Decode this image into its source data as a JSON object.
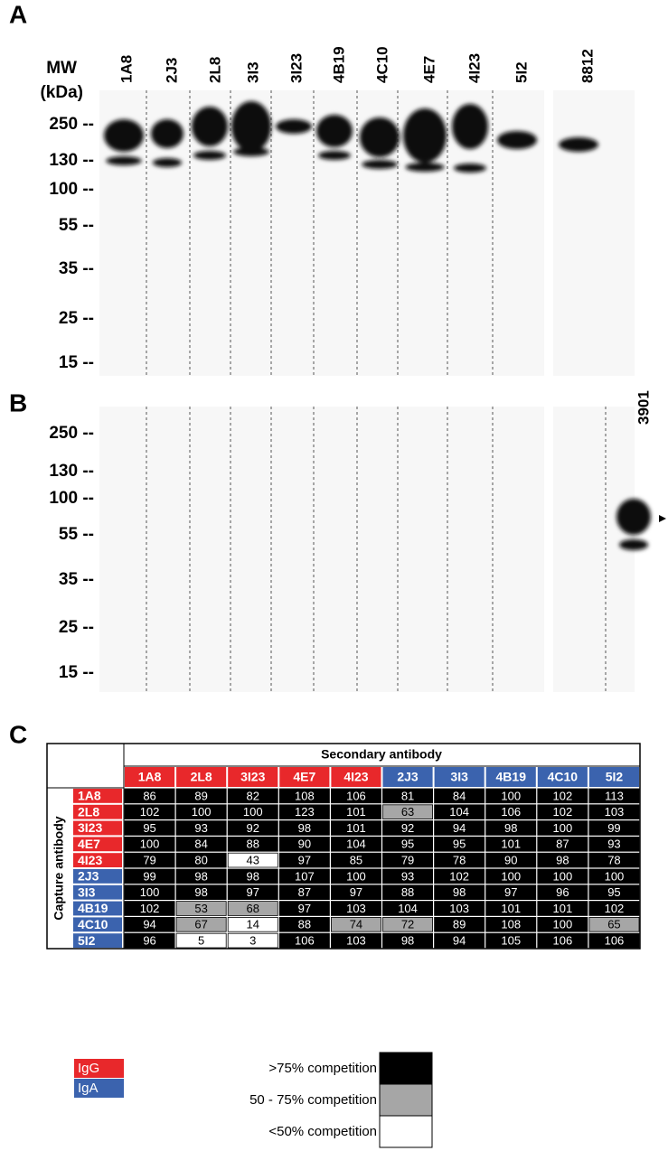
{
  "panel_a": {
    "label": "A",
    "mw_header": [
      "MW",
      "(kDa)"
    ],
    "mw_labels": [
      "250 --",
      "130 --",
      "100 --",
      "55 --",
      "35 --",
      "25 --",
      "15 --"
    ],
    "lanes": [
      "1A8",
      "2J3",
      "2L8",
      "3I3",
      "3I23",
      "4B19",
      "4C10",
      "4E7",
      "4I23",
      "5I2",
      "8812"
    ]
  },
  "panel_b": {
    "label": "B",
    "mw_labels": [
      "250 --",
      "130 --",
      "100 --",
      "55 --",
      "35 --",
      "25 --",
      "15 --"
    ],
    "lanes": [
      "3901"
    ]
  },
  "panel_c": {
    "label": "C",
    "title": "Secondary antibody",
    "row_title": "Capture antibody",
    "isotypes": [
      {
        "label": "IgG",
        "color": "#e8282b"
      },
      {
        "label": "IgA",
        "color": "#3b63ae"
      }
    ],
    "columns": [
      {
        "label": "1A8",
        "isotype": "IgG"
      },
      {
        "label": "2L8",
        "isotype": "IgG"
      },
      {
        "label": "3I23",
        "isotype": "IgG"
      },
      {
        "label": "4E7",
        "isotype": "IgG"
      },
      {
        "label": "4I23",
        "isotype": "IgG"
      },
      {
        "label": "2J3",
        "isotype": "IgA"
      },
      {
        "label": "3I3",
        "isotype": "IgA"
      },
      {
        "label": "4B19",
        "isotype": "IgA"
      },
      {
        "label": "4C10",
        "isotype": "IgA"
      },
      {
        "label": "5I2",
        "isotype": "IgA"
      }
    ],
    "rows": [
      {
        "label": "1A8",
        "isotype": "IgG",
        "values": [
          86,
          89,
          82,
          108,
          106,
          81,
          84,
          100,
          102,
          113
        ]
      },
      {
        "label": "2L8",
        "isotype": "IgG",
        "values": [
          102,
          100,
          100,
          123,
          101,
          63,
          104,
          106,
          102,
          103
        ]
      },
      {
        "label": "3I23",
        "isotype": "IgG",
        "values": [
          95,
          93,
          92,
          98,
          101,
          92,
          94,
          98,
          100,
          99
        ]
      },
      {
        "label": "4E7",
        "isotype": "IgG",
        "values": [
          100,
          84,
          88,
          90,
          104,
          95,
          95,
          101,
          87,
          93
        ]
      },
      {
        "label": "4I23",
        "isotype": "IgG",
        "values": [
          79,
          80,
          43,
          97,
          85,
          79,
          78,
          90,
          98,
          78
        ]
      },
      {
        "label": "2J3",
        "isotype": "IgA",
        "values": [
          99,
          98,
          98,
          107,
          100,
          93,
          102,
          100,
          100,
          100
        ]
      },
      {
        "label": "3I3",
        "isotype": "IgA",
        "values": [
          100,
          98,
          97,
          87,
          97,
          88,
          98,
          97,
          96,
          95
        ]
      },
      {
        "label": "4B19",
        "isotype": "IgA",
        "values": [
          102,
          53,
          68,
          97,
          103,
          104,
          103,
          101,
          101,
          102
        ]
      },
      {
        "label": "4C10",
        "isotype": "IgA",
        "values": [
          94,
          67,
          14,
          88,
          74,
          72,
          89,
          108,
          100,
          65
        ]
      },
      {
        "label": "5I2",
        "isotype": "IgA",
        "values": [
          96,
          5,
          3,
          106,
          103,
          98,
          94,
          105,
          106,
          106
        ]
      }
    ],
    "competition_legend": [
      {
        "label": ">75% competition",
        "color": "#000000",
        "min": 75
      },
      {
        "label": "50 - 75% competition",
        "color": "#a6a6a6",
        "min": 50
      },
      {
        "label": "<50% competition",
        "color": "#ffffff"
      }
    ]
  }
}
